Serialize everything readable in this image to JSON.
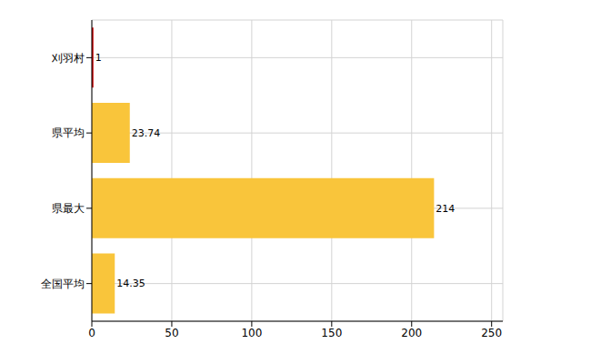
{
  "chart_data": {
    "type": "bar",
    "orientation": "horizontal",
    "categories": [
      "刈羽村",
      "県平均",
      "県最大",
      "全国平均"
    ],
    "values": [
      1,
      23.74,
      214,
      14.35
    ],
    "colors": [
      "#cc0000",
      "#f9c53b",
      "#f9c53b",
      "#f9c53b"
    ],
    "xlim": [
      0,
      257
    ],
    "xticks": [
      0,
      50,
      100,
      150,
      200,
      250
    ],
    "grid": true,
    "data_labels": true
  }
}
